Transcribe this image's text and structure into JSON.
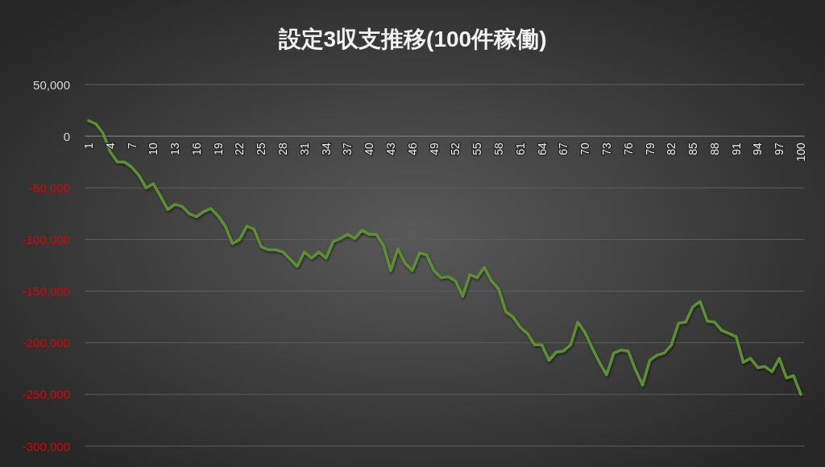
{
  "chart_data": {
    "type": "line",
    "title": "設定3収支推移(100件稼働)",
    "categories": [
      "1",
      null,
      null,
      "4",
      null,
      null,
      "7",
      null,
      null,
      "10",
      null,
      null,
      "13",
      null,
      null,
      "16",
      null,
      null,
      "19",
      null,
      null,
      "22",
      null,
      null,
      "25",
      null,
      null,
      "28",
      null,
      null,
      "31",
      null,
      null,
      "34",
      null,
      null,
      "37",
      null,
      null,
      "40",
      null,
      null,
      "43",
      null,
      null,
      "46",
      null,
      null,
      "49",
      null,
      null,
      "52",
      null,
      null,
      "55",
      null,
      null,
      "58",
      null,
      null,
      "61",
      null,
      null,
      "64",
      null,
      null,
      "67",
      null,
      null,
      "70",
      null,
      null,
      "73",
      null,
      null,
      "76",
      null,
      null,
      "79",
      null,
      null,
      "82",
      null,
      null,
      "85",
      null,
      null,
      "88",
      null,
      null,
      "91",
      null,
      null,
      "94",
      null,
      null,
      "97",
      null,
      null,
      "100"
    ],
    "series": [
      {
        "color": "#5b8f32",
        "values": [
          15000,
          12000,
          3000,
          -15000,
          -25000,
          -25000,
          -30000,
          -38000,
          -50000,
          -46000,
          -58000,
          -71000,
          -66000,
          -68000,
          -75000,
          -78000,
          -73000,
          -70000,
          -77000,
          -87000,
          -104000,
          -100000,
          -87000,
          -90000,
          -107000,
          -110000,
          -110000,
          -112000,
          -119000,
          -126000,
          -112000,
          -118000,
          -112000,
          -118000,
          -102000,
          -99000,
          -95000,
          -99000,
          -91000,
          -95000,
          -95000,
          -106000,
          -130000,
          -109000,
          -123000,
          -130000,
          -113000,
          -115000,
          -130000,
          -137000,
          -136000,
          -140000,
          -155000,
          -134000,
          -137000,
          -127000,
          -140000,
          -148000,
          -170000,
          -175000,
          -185000,
          -191000,
          -202000,
          -202000,
          -217000,
          -209000,
          -208000,
          -202000,
          -180000,
          -190000,
          -205000,
          -219000,
          -231000,
          -210000,
          -207000,
          -208000,
          -226000,
          -241000,
          -217000,
          -212000,
          -210000,
          -202000,
          -181000,
          -180000,
          -165000,
          -160000,
          -179000,
          -180000,
          -188000,
          -191000,
          -194000,
          -219000,
          -215000,
          -224000,
          -223000,
          -228000,
          -215000,
          -234000,
          -232000,
          -250000
        ]
      }
    ],
    "ylim": [
      -300000,
      50000
    ],
    "yticks": [
      {
        "value": 50000,
        "label": "50,000"
      },
      {
        "value": 0,
        "label": "0"
      },
      {
        "value": -50000,
        "label": "-50,000"
      },
      {
        "value": -100000,
        "label": "-100,000"
      },
      {
        "value": -150000,
        "label": "-150,000"
      },
      {
        "value": -200000,
        "label": "-200,000"
      },
      {
        "value": -250000,
        "label": "-250,000"
      },
      {
        "value": -300000,
        "label": "-300,000"
      }
    ],
    "grid": "y"
  }
}
